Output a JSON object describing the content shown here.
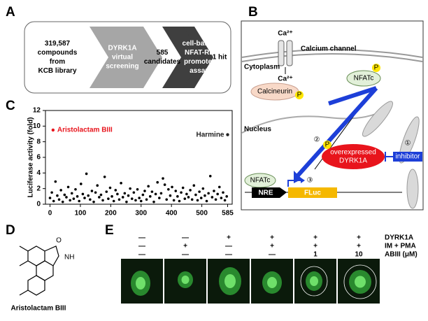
{
  "panel_a": {
    "label": "A",
    "steps": [
      [
        "319,587",
        "compounds",
        "from",
        "KCB library"
      ],
      [
        "DYRK1A",
        "virtual",
        "screening"
      ],
      [
        "585",
        "candidates"
      ],
      [
        "cell-based",
        "NFAT-RE",
        "promoter",
        "assay"
      ],
      [
        "1 hit"
      ]
    ]
  },
  "panel_b": {
    "label": "B",
    "ca_outer": "Ca²⁺",
    "calcium_channel": "Calcium channel",
    "cytoplasm": "Cytoplasm",
    "ca_inner": "Ca²⁺",
    "calcineurin": "Calcineurin",
    "nfatc_cyto": "NFATc",
    "p_marks": [
      "P",
      "P",
      "P"
    ],
    "nucleus": "Nucleus",
    "step_1": "①",
    "step_2": "②",
    "step_3": "③",
    "dyrk1a": [
      "overexpressed",
      "DYRK1A"
    ],
    "inhibitor": "inhibitor",
    "nfatc_nuc": "NFATc",
    "nre": "NRE",
    "fluc": "FLuc"
  },
  "panel_c_label": "C",
  "chart_data": {
    "type": "scatter",
    "y_label": "Luciferase activity (fold)",
    "xlim": [
      -15,
      600
    ],
    "xticks": [
      0,
      100,
      200,
      300,
      400,
      500,
      585
    ],
    "ylim": [
      0,
      12
    ],
    "yticks": [
      0,
      2,
      4,
      6,
      8,
      10,
      12
    ],
    "series": [
      {
        "color": "#000000",
        "x": [
          0,
          6,
          12,
          18,
          24,
          30,
          36,
          42,
          48,
          54,
          60,
          66,
          72,
          78,
          84,
          90,
          96,
          102,
          108,
          114,
          120,
          126,
          132,
          138,
          144,
          150,
          156,
          162,
          168,
          174,
          180,
          186,
          192,
          198,
          204,
          210,
          216,
          222,
          228,
          234,
          240,
          246,
          252,
          258,
          264,
          270,
          276,
          282,
          288,
          294,
          300,
          306,
          312,
          318,
          324,
          330,
          336,
          342,
          348,
          354,
          360,
          366,
          372,
          378,
          384,
          390,
          396,
          402,
          408,
          414,
          420,
          426,
          432,
          438,
          444,
          450,
          456,
          462,
          468,
          474,
          480,
          486,
          492,
          498,
          504,
          510,
          516,
          522,
          528,
          534,
          540,
          546,
          552,
          558,
          564,
          570,
          576,
          582
        ],
        "values": [
          0.8,
          1.5,
          0.4,
          2.9,
          1.1,
          0.6,
          1.8,
          0.3,
          1.2,
          0.9,
          2.2,
          0.5,
          1.4,
          0.7,
          1.9,
          1.0,
          0.4,
          2.6,
          1.3,
          0.8,
          3.9,
          1.1,
          0.6,
          1.7,
          0.3,
          1.5,
          2.4,
          0.9,
          1.2,
          0.5,
          3.5,
          1.6,
          0.7,
          2.1,
          1.0,
          0.4,
          1.8,
          1.3,
          0.6,
          2.7,
          0.9,
          1.4,
          0.3,
          1.1,
          2.0,
          0.7,
          1.5,
          0.5,
          1.9,
          0.8,
          0.4,
          1.2,
          1.7,
          0.6,
          2.3,
          1.0,
          1.6,
          0.3,
          1.3,
          2.8,
          0.8,
          1.4,
          3.3,
          2.5,
          0.6,
          1.9,
          1.1,
          2.2,
          0.5,
          1.7,
          1.0,
          0.4,
          1.5,
          2.1,
          0.7,
          1.3,
          0.9,
          1.8,
          0.6,
          2.4,
          1.2,
          0.5,
          1.6,
          0.8,
          2.0,
          1.1,
          0.4,
          1.4,
          3.6,
          0.9,
          1.7,
          0.6,
          1.3,
          2.2,
          0.8,
          1.5,
          0.5,
          1.0
        ]
      }
    ],
    "annotations": [
      {
        "text": "Aristolactam BIII",
        "x": 10,
        "y": 9.5,
        "color": "#e8141c"
      },
      {
        "text": "Harmine",
        "x": 585,
        "y": 8.9,
        "color": "#222222"
      }
    ]
  },
  "panel_d": {
    "label": "D",
    "atoms": [
      "O",
      "NH"
    ],
    "compound": "Aristolactam BIII"
  },
  "panel_e": {
    "label": "E",
    "row_labels": [
      "DYRK1A",
      "IM + PMA",
      "ABIII (μM)"
    ],
    "conditions": [
      [
        "—",
        "—",
        "+",
        "+",
        "+",
        "+"
      ],
      [
        "—",
        "+",
        "—",
        "+",
        "+",
        "+"
      ],
      [
        "—",
        "—",
        "—",
        "—",
        "1",
        "10"
      ]
    ]
  }
}
